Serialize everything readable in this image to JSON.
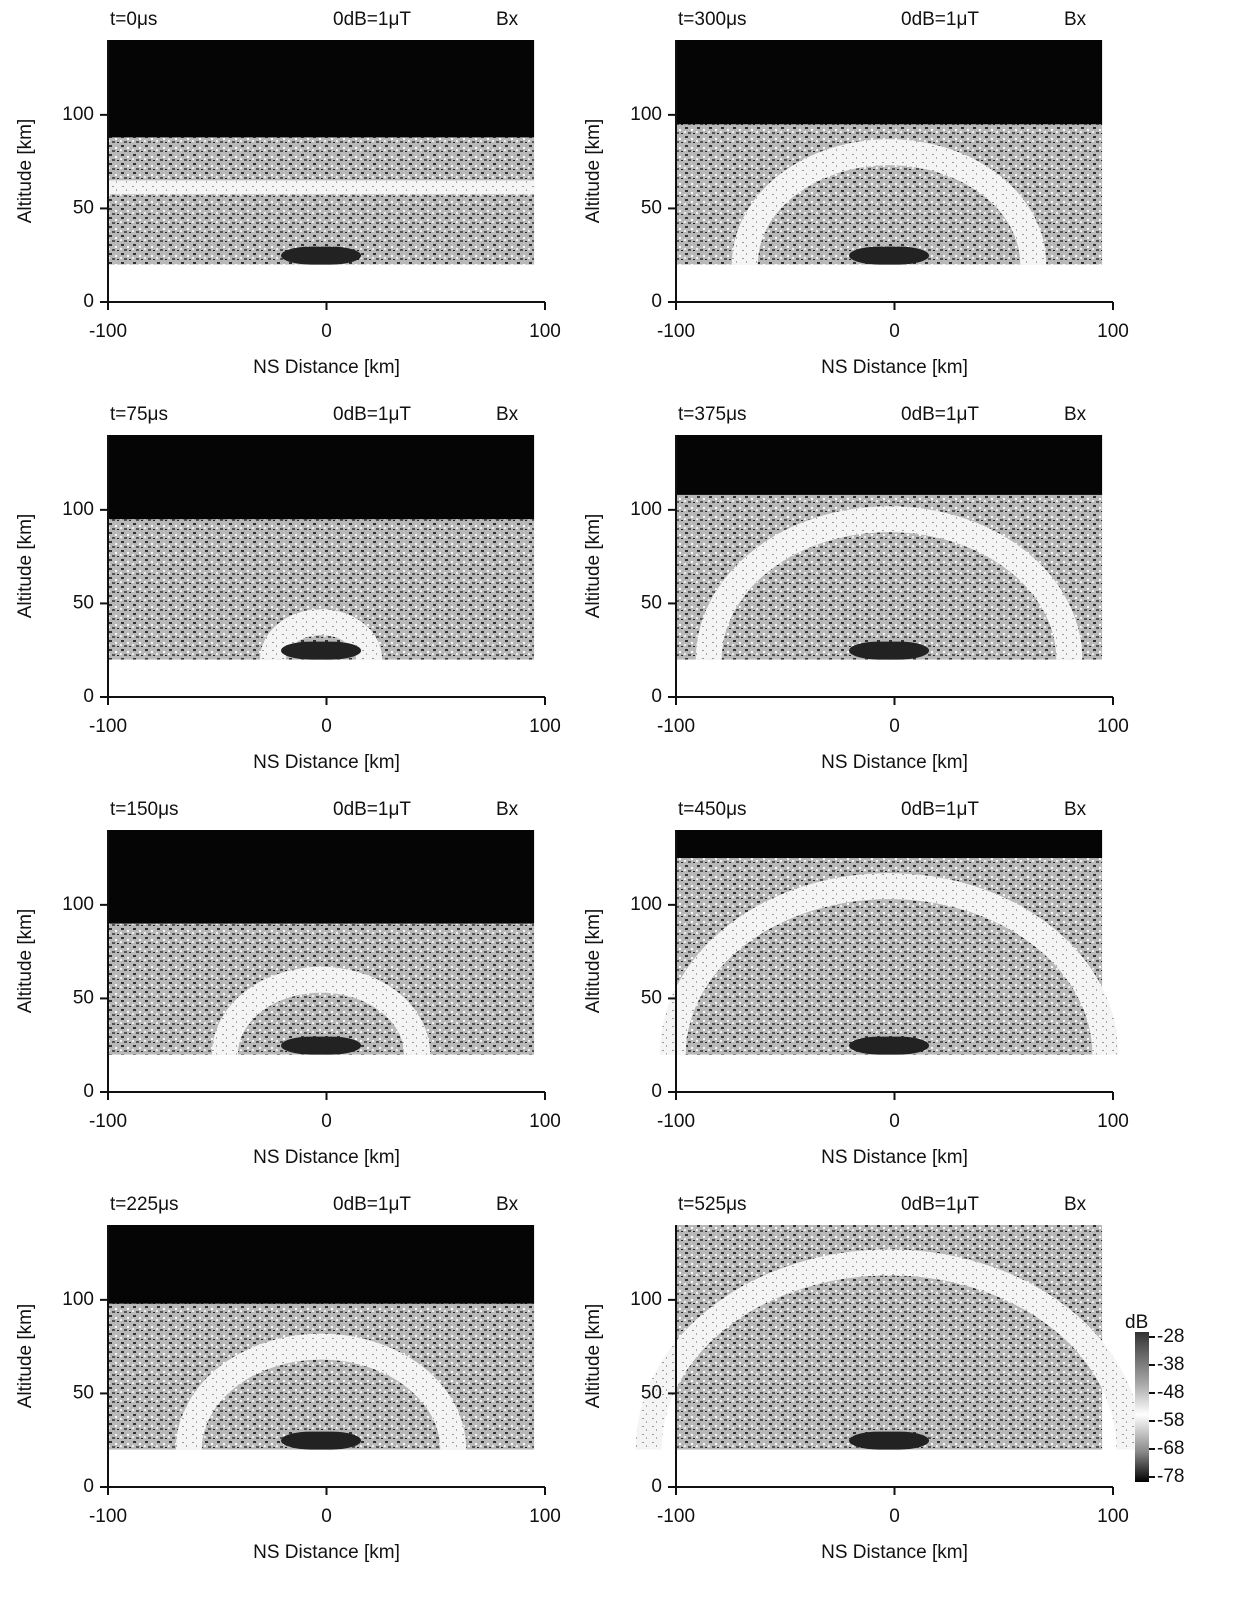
{
  "chart_data": [
    {
      "type": "heatmap",
      "title": "t=0μs",
      "subtitle": "0dB=1μT",
      "field": "Bx",
      "xlabel": "NS Distance [km]",
      "ylabel": "Altitude [km]",
      "xlim": [
        -100,
        100
      ],
      "xticks": [
        -100,
        0,
        100
      ],
      "ylim": [
        0,
        140
      ],
      "yticks": [
        0,
        50,
        100
      ]
    },
    {
      "type": "heatmap",
      "title": "t=300μs",
      "subtitle": "0dB=1μT",
      "field": "Bx",
      "xlabel": "NS Distance [km]",
      "ylabel": "Altitude [km]",
      "xlim": [
        -100,
        100
      ],
      "xticks": [
        -100,
        0,
        100
      ],
      "ylim": [
        0,
        140
      ],
      "yticks": [
        0,
        50,
        100
      ]
    },
    {
      "type": "heatmap",
      "title": "t=75μs",
      "subtitle": "0dB=1μT",
      "field": "Bx",
      "xlabel": "NS Distance [km]",
      "ylabel": "Altitude [km]",
      "xlim": [
        -100,
        100
      ],
      "xticks": [
        -100,
        0,
        100
      ],
      "ylim": [
        0,
        140
      ],
      "yticks": [
        0,
        50,
        100
      ]
    },
    {
      "type": "heatmap",
      "title": "t=375μs",
      "subtitle": "0dB=1μT",
      "field": "Bx",
      "xlabel": "NS Distance [km]",
      "ylabel": "Altitude [km]",
      "xlim": [
        -100,
        100
      ],
      "xticks": [
        -100,
        0,
        100
      ],
      "ylim": [
        0,
        140
      ],
      "yticks": [
        0,
        50,
        100
      ]
    },
    {
      "type": "heatmap",
      "title": "t=150μs",
      "subtitle": "0dB=1μT",
      "field": "Bx",
      "xlabel": "NS Distance [km]",
      "ylabel": "Altitude [km]",
      "xlim": [
        -100,
        100
      ],
      "xticks": [
        -100,
        0,
        100
      ],
      "ylim": [
        0,
        140
      ],
      "yticks": [
        0,
        50,
        100
      ]
    },
    {
      "type": "heatmap",
      "title": "t=450μs",
      "subtitle": "0dB=1μT",
      "field": "Bx",
      "xlabel": "NS Distance [km]",
      "ylabel": "Altitude [km]",
      "xlim": [
        -100,
        100
      ],
      "xticks": [
        -100,
        0,
        100
      ],
      "ylim": [
        0,
        140
      ],
      "yticks": [
        0,
        50,
        100
      ]
    },
    {
      "type": "heatmap",
      "title": "t=225μs",
      "subtitle": "0dB=1μT",
      "field": "Bx",
      "xlabel": "NS Distance [km]",
      "ylabel": "Altitude [km]",
      "xlim": [
        -100,
        100
      ],
      "xticks": [
        -100,
        0,
        100
      ],
      "ylim": [
        0,
        140
      ],
      "yticks": [
        0,
        50,
        100
      ]
    },
    {
      "type": "heatmap",
      "title": "t=525μs",
      "subtitle": "0dB=1μT",
      "field": "Bx",
      "xlabel": "NS Distance [km]",
      "ylabel": "Altitude [km]",
      "xlim": [
        -100,
        100
      ],
      "xticks": [
        -100,
        0,
        100
      ],
      "ylim": [
        0,
        140
      ],
      "yticks": [
        0,
        50,
        100
      ],
      "colorbar": {
        "label": "dB",
        "ticks": [
          -28,
          -38,
          -48,
          -58,
          -68,
          -78
        ]
      }
    }
  ]
}
